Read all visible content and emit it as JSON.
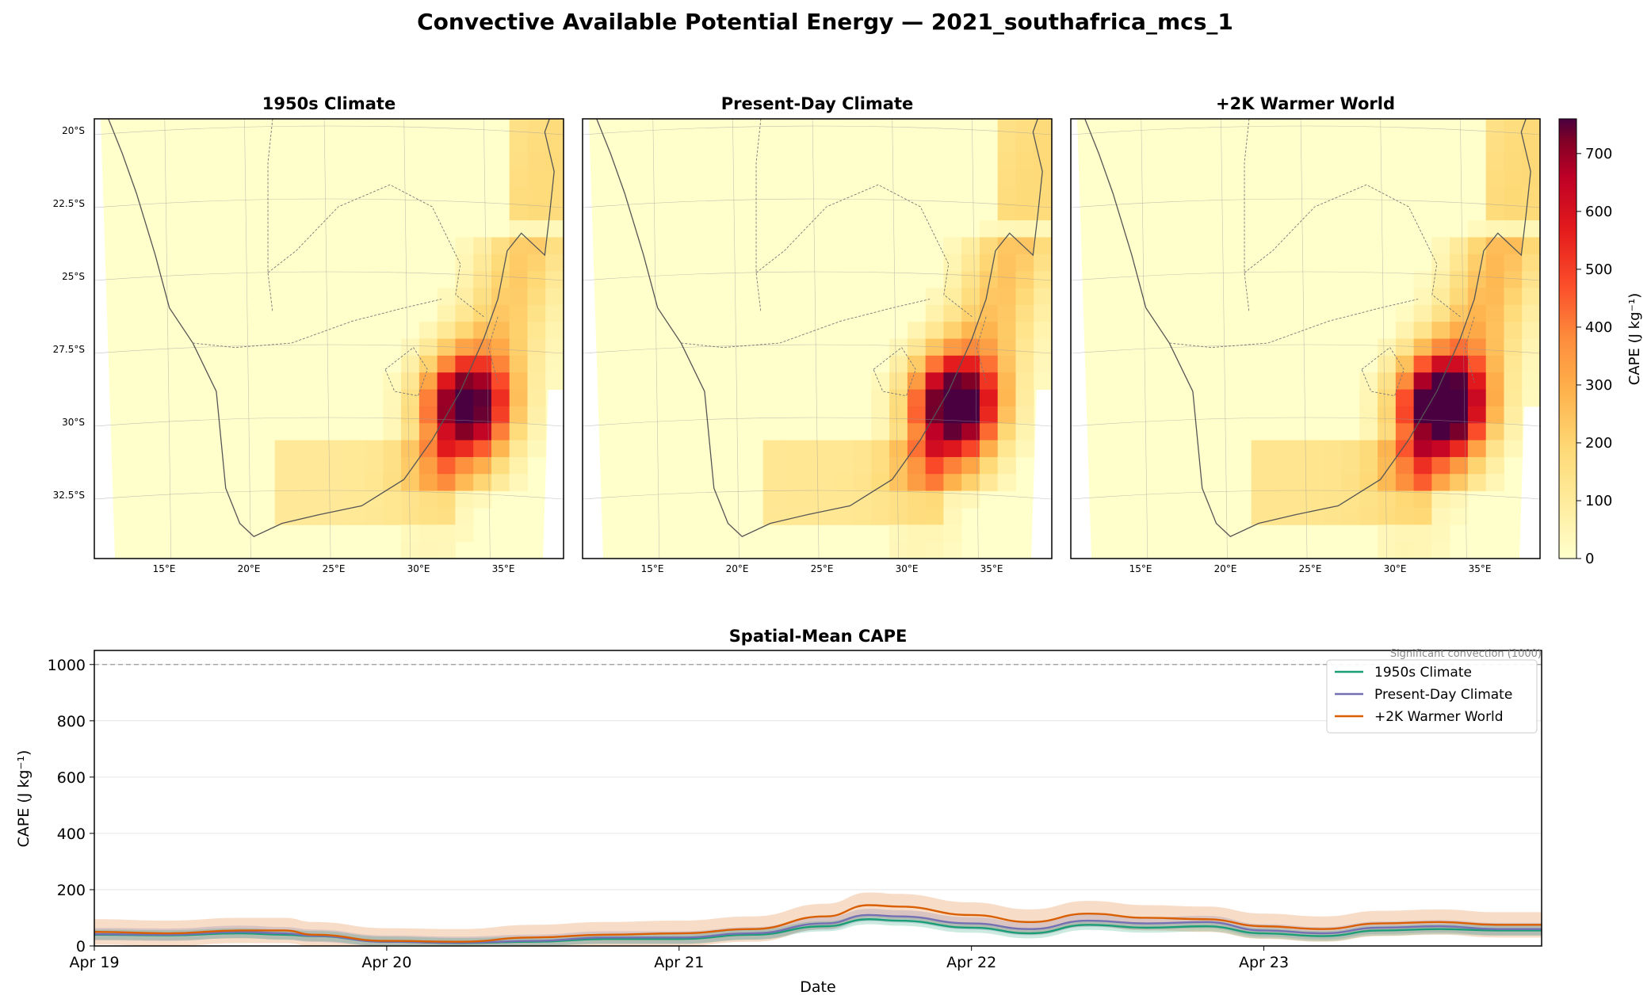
{
  "figure": {
    "title": "Convective Available Potential Energy — 2021_southafrica_mcs_1"
  },
  "colors": {
    "series_1950s": "#1b9e77",
    "series_present": "#7570b3",
    "series_2k": "#d95f02",
    "colormap": [
      "#ffffcc",
      "#ffeda0",
      "#fed976",
      "#feb24c",
      "#fd8d3c",
      "#fc4e2a",
      "#e31a1c",
      "#bd0026",
      "#800026",
      "#4a0040"
    ]
  },
  "chart_data": [
    {
      "type": "heatmap",
      "title": "1950s Climate",
      "panel_key": "p1950",
      "lat_ticks": [
        "20°S",
        "22.5°S",
        "25°S",
        "27.5°S",
        "30°S",
        "32.5°S"
      ],
      "lon_ticks": [
        "15°E",
        "20°E",
        "25°E",
        "30°E",
        "35°E"
      ],
      "peak_value": 640
    },
    {
      "type": "heatmap",
      "title": "Present-Day Climate",
      "panel_key": "present",
      "lat_ticks": [],
      "lon_ticks": [
        "15°E",
        "20°E",
        "25°E",
        "30°E",
        "35°E"
      ],
      "peak_value": 690
    },
    {
      "type": "heatmap",
      "title": "+2K Warmer World",
      "panel_key": "plus2k",
      "lat_ticks": [],
      "lon_ticks": [
        "15°E",
        "20°E",
        "25°E",
        "30°E",
        "35°E"
      ],
      "peak_value": 760
    },
    {
      "type": "line",
      "title": "Spatial-Mean CAPE",
      "xlabel": "Date",
      "ylabel": "CAPE (J kg⁻¹)",
      "ylim": [
        0,
        1050
      ],
      "yticks": [
        0,
        200,
        400,
        600,
        800,
        1000
      ],
      "xlim_days": [
        0,
        4.95
      ],
      "xticks": [
        "Apr 19",
        "Apr 20",
        "Apr 21",
        "Apr 22",
        "Apr 23"
      ],
      "threshold": {
        "value": 1000,
        "label": "Significant convection (1000)"
      },
      "legend_position": "top-right",
      "x_days": [
        0,
        0.25,
        0.5,
        0.65,
        0.75,
        1.0,
        1.25,
        1.5,
        1.75,
        2.0,
        2.25,
        2.5,
        2.65,
        2.75,
        3.0,
        3.2,
        3.4,
        3.6,
        3.8,
        4.0,
        4.2,
        4.4,
        4.6,
        4.8,
        4.95
      ],
      "series": [
        {
          "name": "1950s Climate",
          "values": [
            40,
            38,
            45,
            40,
            35,
            15,
            10,
            15,
            25,
            25,
            40,
            70,
            95,
            90,
            65,
            45,
            75,
            65,
            70,
            45,
            35,
            55,
            60,
            55,
            55
          ],
          "band": 18
        },
        {
          "name": "Present-Day Climate",
          "values": [
            42,
            40,
            50,
            45,
            36,
            15,
            11,
            18,
            30,
            30,
            45,
            80,
            110,
            105,
            80,
            60,
            90,
            80,
            85,
            55,
            45,
            65,
            70,
            60,
            60
          ],
          "band": 22
        },
        {
          "name": "+2K Warmer World",
          "values": [
            50,
            45,
            55,
            55,
            40,
            18,
            15,
            30,
            40,
            45,
            60,
            105,
            145,
            140,
            110,
            85,
            115,
            100,
            95,
            70,
            60,
            80,
            85,
            75,
            75
          ],
          "band": 45
        }
      ]
    }
  ],
  "colorbar": {
    "label": "CAPE (J kg⁻¹)",
    "vmin": 0,
    "vmax": 760,
    "ticks": [
      0,
      100,
      200,
      300,
      400,
      500,
      600,
      700
    ]
  }
}
